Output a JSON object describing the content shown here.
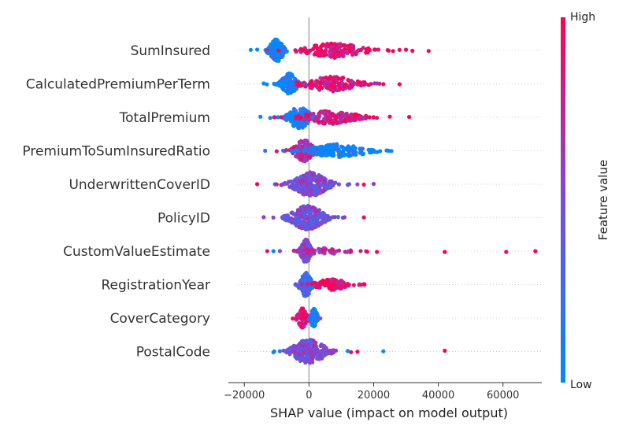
{
  "chart_data": {
    "type": "scatter",
    "subtype": "shap-beeswarm",
    "title": "",
    "xlabel": "SHAP value (impact on model output)",
    "xlim": [
      -22000,
      72000
    ],
    "x_ticks": [
      -20000,
      0,
      20000,
      40000,
      60000
    ],
    "x_tick_labels": [
      "−20000",
      "0",
      "20000",
      "40000",
      "60000"
    ],
    "zero_line": true,
    "features": [
      "SumInsured",
      "CalculatedPremiumPerTerm",
      "TotalPremium",
      "PremiumToSumInsuredRatio",
      "UnderwrittenCoverID",
      "PolicyID",
      "CustomValueEstimate",
      "RegistrationYear",
      "CoverCategory",
      "PostalCode"
    ],
    "feature_distributions": [
      {
        "feature": "SumInsured",
        "clusters": [
          {
            "center": -10000,
            "spread": 1500,
            "width": 0.85,
            "count": 160,
            "feature_value": 0.03
          },
          {
            "center": 8000,
            "spread": 6000,
            "width": 0.55,
            "count": 150,
            "feature_value": 0.9
          }
        ],
        "outliers": [
          {
            "x": -18000,
            "fv": 0.0
          },
          {
            "x": -16000,
            "fv": 0.02
          },
          {
            "x": 30000,
            "fv": 1.0
          },
          {
            "x": 32000,
            "fv": 1.0
          },
          {
            "x": 37000,
            "fv": 1.0
          },
          {
            "x": 28000,
            "fv": 0.95
          },
          {
            "x": 26000,
            "fv": 1.0
          }
        ]
      },
      {
        "feature": "CalculatedPremiumPerTerm",
        "clusters": [
          {
            "center": -6000,
            "spread": 1600,
            "width": 0.8,
            "count": 130,
            "feature_value": 0.04
          },
          {
            "center": 7000,
            "spread": 5500,
            "width": 0.55,
            "count": 150,
            "feature_value": 0.85
          }
        ],
        "outliers": [
          {
            "x": -14000,
            "fv": 0.0
          },
          {
            "x": -13000,
            "fv": 0.05
          },
          {
            "x": 28000,
            "fv": 1.0
          },
          {
            "x": 23000,
            "fv": 0.95
          }
        ]
      },
      {
        "feature": "TotalPremium",
        "clusters": [
          {
            "center": -3000,
            "spread": 2200,
            "width": 0.85,
            "count": 140,
            "feature_value": 0.08
          },
          {
            "center": 7000,
            "spread": 5500,
            "width": 0.5,
            "count": 150,
            "feature_value": 0.85
          }
        ],
        "outliers": [
          {
            "x": -15000,
            "fv": 0.0
          },
          {
            "x": -12000,
            "fv": 0.1
          },
          {
            "x": 25000,
            "fv": 1.0
          },
          {
            "x": 31000,
            "fv": 1.0
          },
          {
            "x": 21000,
            "fv": 0.9
          }
        ]
      },
      {
        "feature": "PremiumToSumInsuredRatio",
        "clusters": [
          {
            "center": -1500,
            "spread": 2000,
            "width": 0.8,
            "count": 130,
            "feature_value": 0.7
          },
          {
            "center": 9000,
            "spread": 6000,
            "width": 0.5,
            "count": 150,
            "feature_value": 0.05
          }
        ],
        "outliers": [
          {
            "x": -10000,
            "fv": 0.95
          },
          {
            "x": -7000,
            "fv": 0.8
          },
          {
            "x": 22000,
            "fv": 0.0
          },
          {
            "x": 24000,
            "fv": 0.0
          },
          {
            "x": 20000,
            "fv": 0.05
          }
        ]
      },
      {
        "feature": "UnderwrittenCoverID",
        "clusters": [
          {
            "center": 500,
            "spread": 3500,
            "width": 0.9,
            "count": 240,
            "feature_value": 0.5
          }
        ],
        "outliers": [
          {
            "x": -16000,
            "fv": 1.0
          },
          {
            "x": -10000,
            "fv": 0.8
          },
          {
            "x": 17000,
            "fv": 0.95
          },
          {
            "x": 20000,
            "fv": 0.6
          },
          {
            "x": 15000,
            "fv": 0.5
          },
          {
            "x": 12000,
            "fv": 0.3
          }
        ]
      },
      {
        "feature": "PolicyID",
        "clusters": [
          {
            "center": -500,
            "spread": 3500,
            "width": 0.9,
            "count": 220,
            "feature_value": 0.45
          }
        ],
        "outliers": [
          {
            "x": -14000,
            "fv": 0.6
          },
          {
            "x": -8000,
            "fv": 0.4
          },
          {
            "x": 17000,
            "fv": 0.95
          },
          {
            "x": 11000,
            "fv": 0.6
          },
          {
            "x": 9000,
            "fv": 0.3
          }
        ]
      },
      {
        "feature": "CustomValueEstimate",
        "clusters": [
          {
            "center": -1000,
            "spread": 1000,
            "width": 0.9,
            "count": 170,
            "feature_value": 0.5
          },
          {
            "center": 4000,
            "spread": 5000,
            "width": 0.25,
            "count": 60,
            "feature_value": 0.7
          }
        ],
        "outliers": [
          {
            "x": -11000,
            "fv": 0.0
          },
          {
            "x": -9000,
            "fv": 0.5
          },
          {
            "x": 13000,
            "fv": 0.95
          },
          {
            "x": 18000,
            "fv": 1.0
          },
          {
            "x": 21000,
            "fv": 1.0
          },
          {
            "x": 42000,
            "fv": 1.0
          },
          {
            "x": 61000,
            "fv": 1.0
          },
          {
            "x": 70000,
            "fv": 1.0
          },
          {
            "x": 16000,
            "fv": 0.8
          }
        ]
      },
      {
        "feature": "RegistrationYear",
        "clusters": [
          {
            "center": -1000,
            "spread": 1200,
            "width": 0.9,
            "count": 140,
            "feature_value": 0.3
          },
          {
            "center": 7000,
            "spread": 3500,
            "width": 0.4,
            "count": 110,
            "feature_value": 0.95
          }
        ],
        "outliers": [
          {
            "x": 17000,
            "fv": 1.0
          },
          {
            "x": 12000,
            "fv": 0.95
          },
          {
            "x": -3000,
            "fv": 0.45
          }
        ]
      },
      {
        "feature": "CoverCategory",
        "clusters": [
          {
            "center": -2000,
            "spread": 900,
            "width": 0.75,
            "count": 110,
            "feature_value": 0.9
          },
          {
            "center": 1500,
            "spread": 700,
            "width": 0.7,
            "count": 90,
            "feature_value": 0.08
          }
        ],
        "outliers": [
          {
            "x": -5000,
            "fv": 0.9
          },
          {
            "x": 3500,
            "fv": 0.4
          }
        ]
      },
      {
        "feature": "PostalCode",
        "clusters": [
          {
            "center": 0,
            "spread": 3500,
            "width": 0.9,
            "count": 230,
            "feature_value": 0.5
          }
        ],
        "outliers": [
          {
            "x": -11000,
            "fv": 0.0
          },
          {
            "x": -9000,
            "fv": 0.1
          },
          {
            "x": 15000,
            "fv": 1.0
          },
          {
            "x": 13000,
            "fv": 0.95
          },
          {
            "x": 23000,
            "fv": 0.0
          },
          {
            "x": 42000,
            "fv": 1.0
          },
          {
            "x": 12000,
            "fv": 0.05
          }
        ]
      }
    ],
    "colorbar": {
      "label": "Feature value",
      "high_label": "High",
      "low_label": "Low",
      "low_color": "#008afb",
      "mid_color": "#7c4bdb",
      "high_color": "#ff0052"
    }
  }
}
